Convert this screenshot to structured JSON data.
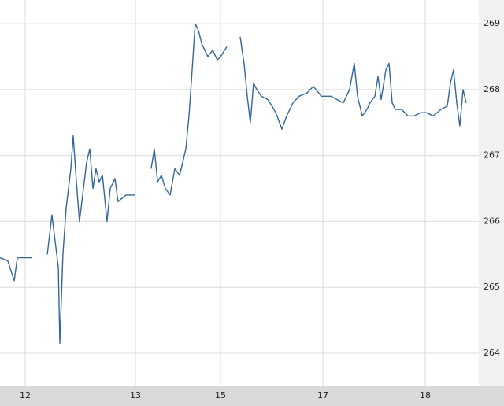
{
  "chart_data": {
    "type": "line",
    "x": [
      0,
      0.071,
      0.129,
      0.157,
      0.214,
      0.286,
      0.357,
      0.429,
      0.471,
      0.5,
      0.529,
      0.543,
      0.571,
      0.6,
      0.643,
      0.664,
      0.693,
      0.721,
      0.75,
      0.786,
      0.814,
      0.843,
      0.871,
      0.9,
      0.929,
      0.971,
      1.0,
      1.043,
      1.071,
      1.143,
      1.229,
      1.3,
      1.371,
      1.4,
      1.429,
      1.464,
      1.5,
      1.543,
      1.586,
      1.629,
      1.686,
      1.714,
      1.743,
      1.771,
      1.8,
      1.829,
      1.857,
      1.886,
      1.929,
      1.971,
      2.0,
      2.057,
      2.114,
      2.179,
      2.214,
      2.243,
      2.271,
      2.3,
      2.329,
      2.371,
      2.429,
      2.486,
      2.514,
      2.557,
      2.6,
      2.657,
      2.714,
      2.786,
      2.843,
      2.914,
      3.0,
      3.114,
      3.171,
      3.214,
      3.243,
      3.286,
      3.329,
      3.357,
      3.4,
      3.429,
      3.457,
      3.5,
      3.529,
      3.557,
      3.586,
      3.643,
      3.7,
      3.757,
      3.814,
      3.871,
      3.929,
      4.0,
      4.057,
      4.086,
      4.114,
      4.143,
      4.171,
      4.2,
      4.229
    ],
    "series": [
      {
        "color": "#336699",
        "values": [
          265.45,
          265.4,
          265.1,
          265.45,
          265.45,
          265.45,
          null,
          265.5,
          266.1,
          265.7,
          265.3,
          264.15,
          265.5,
          266.2,
          266.8,
          267.3,
          266.6,
          266.0,
          266.4,
          266.9,
          267.1,
          266.5,
          266.8,
          266.6,
          266.7,
          266.0,
          266.5,
          266.65,
          266.3,
          266.4,
          266.4,
          null,
          266.8,
          267.1,
          266.6,
          266.7,
          266.5,
          266.4,
          266.8,
          266.7,
          267.1,
          267.6,
          268.3,
          269.0,
          268.9,
          268.7,
          268.6,
          268.5,
          268.6,
          268.45,
          268.5,
          268.65,
          null,
          268.8,
          268.4,
          267.9,
          267.5,
          268.1,
          268.0,
          267.9,
          267.85,
          267.7,
          267.6,
          267.4,
          267.6,
          267.8,
          267.9,
          267.95,
          268.05,
          267.9,
          267.9,
          267.8,
          268.0,
          268.4,
          267.9,
          267.6,
          267.7,
          267.8,
          267.9,
          268.2,
          267.85,
          268.3,
          268.4,
          267.8,
          267.7,
          267.7,
          267.6,
          267.6,
          267.65,
          267.65,
          267.6,
          267.7,
          267.75,
          268.1,
          268.3,
          267.8,
          267.45,
          268.0,
          267.8
        ]
      }
    ],
    "xlim": [
      0,
      4.343
    ],
    "xticks": [
      {
        "value": 0.229,
        "label": "12"
      },
      {
        "value": 1.229,
        "label": "13"
      },
      {
        "value": 2.0,
        "label": "15"
      },
      {
        "value": 2.929,
        "label": "17"
      },
      {
        "value": 3.857,
        "label": "18"
      }
    ],
    "ylim": [
      263.51,
      269.36
    ],
    "yticks": [
      264,
      265,
      266,
      267,
      268,
      269
    ],
    "grid": true
  }
}
